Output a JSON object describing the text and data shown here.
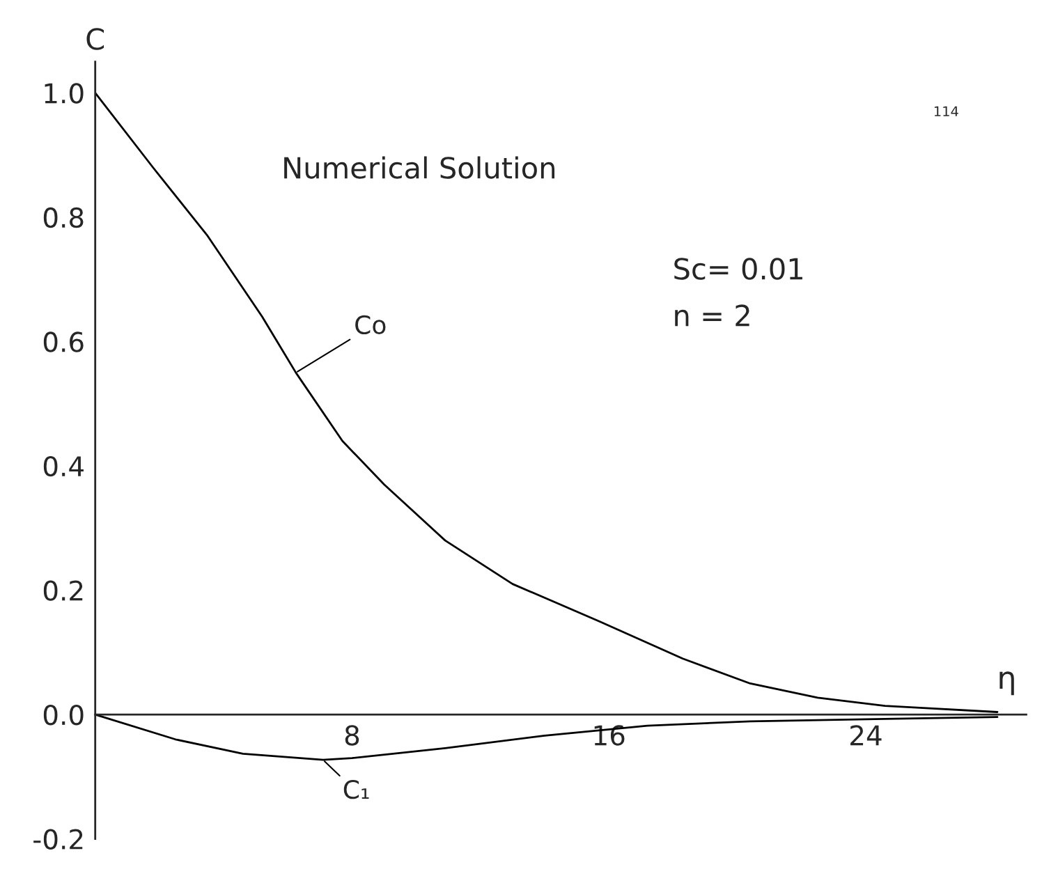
{
  "chart_data": {
    "type": "line",
    "xlabel": "η",
    "ylabel": "C",
    "annotations": [
      "Numerical Solution",
      "Sc= 0.01",
      "n = 2",
      "114"
    ],
    "series": [
      {
        "name": "Co",
        "color": "#000000",
        "x": [
          0,
          1.8,
          3.5,
          5.2,
          6.25,
          7.7,
          9.0,
          10.9,
          13.0,
          15.7,
          18.3,
          20.4,
          22.5,
          24.6,
          28.1
        ],
        "values": [
          1.0,
          0.88,
          0.77,
          0.64,
          0.55,
          0.44,
          0.37,
          0.28,
          0.21,
          0.15,
          0.09,
          0.05,
          0.027,
          0.014,
          0.004
        ]
      },
      {
        "name": "C₁",
        "color": "#000000",
        "x": [
          0,
          2.5,
          4.6,
          7.1,
          8.0,
          10.9,
          14.0,
          17.2,
          20.4,
          24.6,
          28.1
        ],
        "values": [
          0,
          -0.04,
          -0.063,
          -0.073,
          -0.07,
          -0.054,
          -0.034,
          -0.018,
          -0.011,
          -0.007,
          -0.004
        ]
      }
    ],
    "xlim": [
      0,
      29
    ],
    "ylim": [
      -0.2,
      1.05
    ],
    "xticks": [
      8,
      16,
      24
    ],
    "yticks": [
      -0.2,
      {
        "value": 0,
        "label": "0.0"
      },
      0.2,
      0.4,
      0.6,
      0.8,
      {
        "value": 1,
        "label": "1.0"
      }
    ],
    "grid": false,
    "line_style": "solid",
    "marker": "none"
  }
}
